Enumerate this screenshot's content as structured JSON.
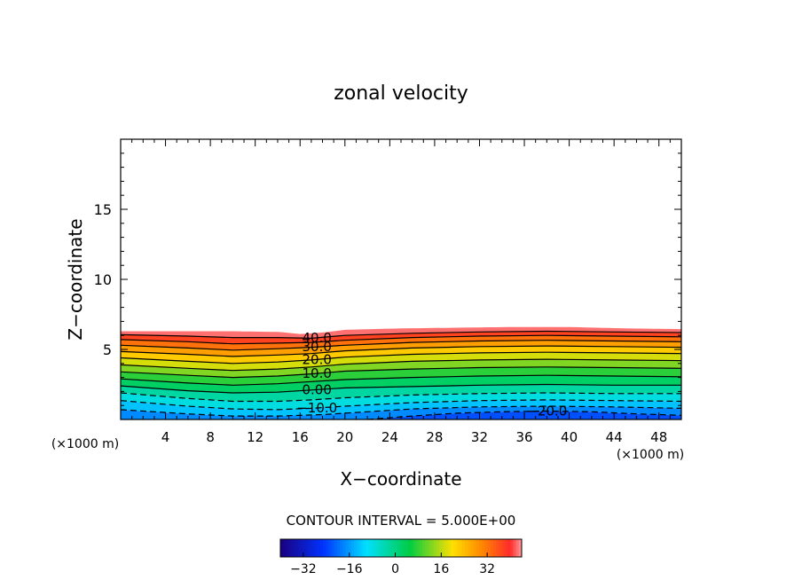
{
  "chart_data": {
    "type": "contour",
    "title": "zonal velocity",
    "xlabel": "X−coordinate",
    "ylabel": "Z−coordinate",
    "x_unit_left": "(×1000 m)",
    "x_unit_right": "(×1000 m)",
    "xlim": [
      0,
      50
    ],
    "ylim": [
      0,
      20
    ],
    "x_ticks": [
      4,
      8,
      12,
      16,
      20,
      24,
      28,
      32,
      36,
      40,
      44,
      48
    ],
    "y_ticks": [
      5,
      10,
      15
    ],
    "x_tick_labels": [
      "4",
      "8",
      "12",
      "16",
      "20",
      "24",
      "28",
      "32",
      "36",
      "40",
      "44",
      "48"
    ],
    "y_tick_labels": [
      "5",
      "10",
      "15"
    ],
    "field_top_height": [
      [
        0,
        6.3
      ],
      [
        5,
        6.3
      ],
      [
        10,
        6.3
      ],
      [
        14,
        6.25
      ],
      [
        16,
        6.1
      ],
      [
        18,
        6.2
      ],
      [
        20,
        6.4
      ],
      [
        25,
        6.5
      ],
      [
        30,
        6.55
      ],
      [
        35,
        6.6
      ],
      [
        40,
        6.6
      ],
      [
        45,
        6.5
      ],
      [
        50,
        6.45
      ]
    ],
    "contour_levels": [
      {
        "value": 40,
        "label": "40.0",
        "points": [
          [
            0,
            6.05
          ],
          [
            6,
            5.95
          ],
          [
            10,
            5.85
          ],
          [
            14,
            5.85
          ],
          [
            17,
            5.8
          ],
          [
            20,
            6.0
          ],
          [
            26,
            6.15
          ],
          [
            32,
            6.25
          ],
          [
            38,
            6.3
          ],
          [
            44,
            6.25
          ],
          [
            50,
            6.2
          ]
        ]
      },
      {
        "value": 35,
        "label": "",
        "points": [
          [
            0,
            5.7
          ],
          [
            6,
            5.55
          ],
          [
            10,
            5.4
          ],
          [
            14,
            5.45
          ],
          [
            17,
            5.5
          ],
          [
            20,
            5.65
          ],
          [
            26,
            5.85
          ],
          [
            32,
            5.95
          ],
          [
            38,
            6.0
          ],
          [
            44,
            5.95
          ],
          [
            50,
            5.9
          ]
        ]
      },
      {
        "value": 30,
        "label": "30.0",
        "points": [
          [
            0,
            5.3
          ],
          [
            6,
            5.1
          ],
          [
            10,
            4.95
          ],
          [
            14,
            5.05
          ],
          [
            17,
            5.15
          ],
          [
            20,
            5.3
          ],
          [
            26,
            5.5
          ],
          [
            32,
            5.6
          ],
          [
            38,
            5.65
          ],
          [
            44,
            5.6
          ],
          [
            50,
            5.55
          ]
        ]
      },
      {
        "value": 25,
        "label": "",
        "points": [
          [
            0,
            4.85
          ],
          [
            6,
            4.65
          ],
          [
            10,
            4.5
          ],
          [
            14,
            4.6
          ],
          [
            17,
            4.7
          ],
          [
            20,
            4.9
          ],
          [
            26,
            5.1
          ],
          [
            32,
            5.2
          ],
          [
            38,
            5.25
          ],
          [
            44,
            5.2
          ],
          [
            50,
            5.15
          ]
        ]
      },
      {
        "value": 20,
        "label": "20.0",
        "points": [
          [
            0,
            4.4
          ],
          [
            6,
            4.15
          ],
          [
            10,
            4.0
          ],
          [
            14,
            4.1
          ],
          [
            17,
            4.25
          ],
          [
            20,
            4.45
          ],
          [
            26,
            4.65
          ],
          [
            32,
            4.75
          ],
          [
            38,
            4.8
          ],
          [
            44,
            4.75
          ],
          [
            50,
            4.7
          ]
        ]
      },
      {
        "value": 15,
        "label": "",
        "points": [
          [
            0,
            3.9
          ],
          [
            6,
            3.65
          ],
          [
            10,
            3.5
          ],
          [
            14,
            3.6
          ],
          [
            17,
            3.75
          ],
          [
            20,
            3.95
          ],
          [
            26,
            4.15
          ],
          [
            32,
            4.25
          ],
          [
            38,
            4.3
          ],
          [
            44,
            4.25
          ],
          [
            50,
            4.2
          ]
        ]
      },
      {
        "value": 10,
        "label": "10.0",
        "points": [
          [
            0,
            3.4
          ],
          [
            6,
            3.15
          ],
          [
            10,
            3.0
          ],
          [
            14,
            3.1
          ],
          [
            17,
            3.25
          ],
          [
            20,
            3.45
          ],
          [
            26,
            3.6
          ],
          [
            32,
            3.7
          ],
          [
            38,
            3.75
          ],
          [
            44,
            3.7
          ],
          [
            50,
            3.65
          ]
        ]
      },
      {
        "value": 5,
        "label": "",
        "points": [
          [
            0,
            2.9
          ],
          [
            6,
            2.6
          ],
          [
            10,
            2.45
          ],
          [
            14,
            2.55
          ],
          [
            17,
            2.7
          ],
          [
            20,
            2.85
          ],
          [
            26,
            3.0
          ],
          [
            32,
            3.1
          ],
          [
            38,
            3.15
          ],
          [
            44,
            3.1
          ],
          [
            50,
            3.05
          ]
        ]
      },
      {
        "value": 0,
        "label": "0.00",
        "points": [
          [
            0,
            2.4
          ],
          [
            6,
            2.05
          ],
          [
            10,
            1.9
          ],
          [
            14,
            1.95
          ],
          [
            17,
            2.1
          ],
          [
            20,
            2.25
          ],
          [
            26,
            2.35
          ],
          [
            32,
            2.45
          ],
          [
            38,
            2.5
          ],
          [
            44,
            2.45
          ],
          [
            50,
            2.45
          ]
        ]
      },
      {
        "value": -5,
        "label": "",
        "points": [
          [
            0,
            1.9
          ],
          [
            6,
            1.5
          ],
          [
            10,
            1.3
          ],
          [
            14,
            1.3
          ],
          [
            17,
            1.4
          ],
          [
            20,
            1.55
          ],
          [
            26,
            1.75
          ],
          [
            32,
            1.85
          ],
          [
            38,
            1.9
          ],
          [
            44,
            1.85
          ],
          [
            50,
            1.85
          ]
        ]
      },
      {
        "value": -10,
        "label": "−10.0",
        "points": [
          [
            0,
            1.35
          ],
          [
            6,
            0.95
          ],
          [
            10,
            0.75
          ],
          [
            14,
            0.7
          ],
          [
            17,
            0.8
          ],
          [
            20,
            0.95
          ],
          [
            26,
            1.2
          ],
          [
            32,
            1.35
          ],
          [
            38,
            1.4
          ],
          [
            44,
            1.35
          ],
          [
            50,
            1.3
          ]
        ]
      },
      {
        "value": -15,
        "label": "",
        "points": [
          [
            0,
            0.7
          ],
          [
            6,
            0.4
          ],
          [
            10,
            0.25
          ],
          [
            14,
            0.25
          ],
          [
            18,
            0.35
          ],
          [
            22,
            0.55
          ],
          [
            26,
            0.75
          ],
          [
            32,
            0.9
          ],
          [
            38,
            0.95
          ],
          [
            44,
            0.9
          ],
          [
            50,
            0.8
          ]
        ]
      },
      {
        "value": -20,
        "label": "−20.0",
        "points": [
          [
            22,
            0
          ],
          [
            26,
            0.25
          ],
          [
            30,
            0.45
          ],
          [
            34,
            0.55
          ],
          [
            38,
            0.6
          ],
          [
            42,
            0.55
          ],
          [
            46,
            0.4
          ],
          [
            50,
            0.3
          ]
        ]
      }
    ],
    "contour_interval_text": "CONTOUR INTERVAL = 5.000E+00",
    "colorbar": {
      "min": -40,
      "max": 44,
      "tick_values": [
        -32,
        -16,
        0,
        16,
        32
      ],
      "tick_labels": [
        "−32",
        "−16",
        "0",
        "16",
        "32"
      ]
    },
    "colors": {
      "lowest": "#1a0080",
      "blue": "#0033ff",
      "cyan": "#00e0ff",
      "green": "#00cc44",
      "yellow": "#ffe000",
      "orange": "#ff8800",
      "red": "#ff2a2a",
      "highest": "#ff9a9a"
    }
  }
}
